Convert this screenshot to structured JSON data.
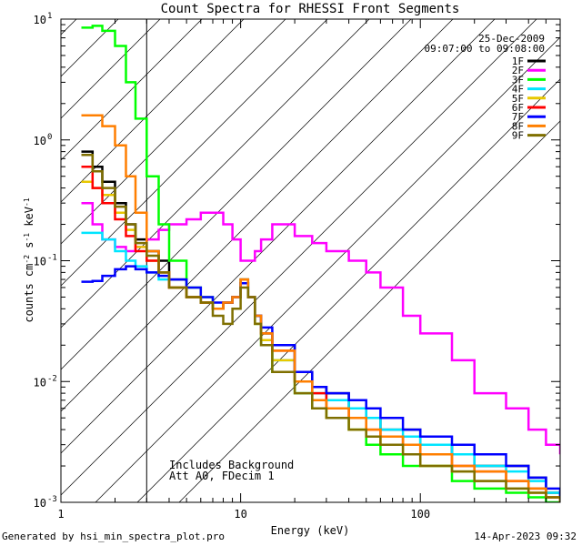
{
  "chart_data": {
    "type": "line",
    "title": "Count Spectra for RHESSI Front Segments",
    "xlabel": "Energy (keV)",
    "ylabel": "counts cm^-2 s^-1 keV^-1",
    "xscale": "log",
    "yscale": "log",
    "xlim": [
      1,
      600
    ],
    "ylim": [
      0.001,
      10
    ],
    "x_ticks": [
      1,
      10,
      100
    ],
    "x_tick_labels": [
      "1",
      "10",
      "100"
    ],
    "y_ticks": [
      0.001,
      0.01,
      0.1,
      1,
      10
    ],
    "y_tick_labels": {
      "0.001": {
        "base": "10",
        "exp": "-3"
      },
      "0.01": {
        "base": "10",
        "exp": "-2"
      },
      "0.1": {
        "base": "10",
        "exp": "-1"
      },
      "1": {
        "base": "10",
        "exp": "0"
      },
      "10": {
        "base": "10",
        "exp": "1"
      }
    },
    "shaded_region": {
      "x_from": 1,
      "x_to": 3,
      "style": "diagonal-hatch"
    },
    "legend_placement": "top-right",
    "date_label": "25-Dec-2009",
    "time_range_label": "09:07:00 to 09:08:00",
    "annotations": [
      "Includes Background",
      "Att A0, FDecim 1"
    ],
    "series": [
      {
        "name": "1F",
        "color": "#000000",
        "x": [
          1.3,
          1.5,
          1.7,
          2.0,
          2.3,
          2.6,
          3.0,
          3.5,
          4.0,
          5.0,
          6.0,
          7.0,
          8.0,
          9.0,
          10.0,
          11.0,
          12.0,
          13.0,
          15.0,
          20.0,
          25.0,
          30.0,
          40.0,
          50.0,
          60.0,
          80.0,
          100.0,
          150.0,
          200.0,
          300.0,
          400.0,
          500.0,
          600.0
        ],
        "y": [
          0.8,
          0.6,
          0.45,
          0.3,
          0.2,
          0.15,
          0.12,
          0.1,
          0.07,
          0.05,
          0.045,
          0.04,
          0.045,
          0.05,
          0.065,
          0.05,
          0.035,
          0.025,
          0.02,
          0.012,
          0.009,
          0.008,
          0.006,
          0.005,
          0.004,
          0.004,
          0.003,
          0.0025,
          0.002,
          0.002,
          0.0016,
          0.0012,
          0.001
        ]
      },
      {
        "name": "2F",
        "color": "#ff00ff",
        "x": [
          1.3,
          1.5,
          1.7,
          2.0,
          2.3,
          2.6,
          3.0,
          3.5,
          4.0,
          5.0,
          6.0,
          7.0,
          8.0,
          9.0,
          10.0,
          11.0,
          12.0,
          13.0,
          15.0,
          20.0,
          25.0,
          30.0,
          40.0,
          50.0,
          60.0,
          80.0,
          100.0,
          150.0,
          200.0,
          300.0,
          400.0,
          500.0,
          600.0
        ],
        "y": [
          0.3,
          0.2,
          0.15,
          0.13,
          0.12,
          0.13,
          0.15,
          0.18,
          0.2,
          0.22,
          0.25,
          0.25,
          0.2,
          0.15,
          0.1,
          0.1,
          0.12,
          0.15,
          0.2,
          0.16,
          0.14,
          0.12,
          0.1,
          0.08,
          0.06,
          0.035,
          0.025,
          0.015,
          0.008,
          0.006,
          0.004,
          0.003,
          0.0025
        ]
      },
      {
        "name": "3F",
        "color": "#00ff00",
        "x": [
          1.3,
          1.5,
          1.7,
          2.0,
          2.3,
          2.6,
          3.0,
          3.5,
          4.0,
          5.0,
          6.0,
          7.0,
          8.0,
          9.0,
          10.0,
          11.0,
          12.0,
          13.0,
          15.0,
          20.0,
          25.0,
          30.0,
          40.0,
          50.0,
          60.0,
          80.0,
          100.0,
          150.0,
          200.0,
          300.0,
          400.0,
          500.0,
          600.0
        ],
        "y": [
          8.5,
          8.8,
          8.0,
          6.0,
          3.0,
          1.5,
          0.5,
          0.2,
          0.1,
          0.06,
          0.05,
          0.04,
          0.045,
          0.05,
          0.07,
          0.05,
          0.03,
          0.02,
          0.012,
          0.008,
          0.006,
          0.005,
          0.004,
          0.003,
          0.0025,
          0.002,
          0.002,
          0.0015,
          0.0013,
          0.0012,
          0.0011,
          0.001,
          0.001
        ]
      },
      {
        "name": "4F",
        "color": "#00e5ff",
        "x": [
          1.3,
          1.5,
          1.7,
          2.0,
          2.3,
          2.6,
          3.0,
          3.5,
          4.0,
          5.0,
          6.0,
          7.0,
          8.0,
          9.0,
          10.0,
          11.0,
          12.0,
          13.0,
          15.0,
          20.0,
          25.0,
          30.0,
          40.0,
          50.0,
          60.0,
          80.0,
          100.0,
          150.0,
          200.0,
          300.0,
          400.0,
          500.0,
          600.0
        ],
        "y": [
          0.17,
          0.17,
          0.15,
          0.12,
          0.1,
          0.09,
          0.08,
          0.07,
          0.06,
          0.05,
          0.045,
          0.04,
          0.045,
          0.05,
          0.07,
          0.05,
          0.035,
          0.025,
          0.015,
          0.01,
          0.008,
          0.007,
          0.006,
          0.005,
          0.004,
          0.0035,
          0.003,
          0.0025,
          0.002,
          0.0018,
          0.0015,
          0.0012,
          0.001
        ]
      },
      {
        "name": "5F",
        "color": "#e8c800",
        "x": [
          1.3,
          1.5,
          1.7,
          2.0,
          2.3,
          2.6,
          3.0,
          3.5,
          4.0,
          5.0,
          6.0,
          7.0,
          8.0,
          9.0,
          10.0,
          11.0,
          12.0,
          13.0,
          15.0,
          20.0,
          25.0,
          30.0,
          40.0,
          50.0,
          60.0,
          80.0,
          100.0,
          150.0,
          200.0,
          300.0,
          400.0,
          500.0,
          600.0
        ],
        "y": [
          0.45,
          0.4,
          0.35,
          0.25,
          0.18,
          0.13,
          0.1,
          0.08,
          0.06,
          0.05,
          0.045,
          0.04,
          0.045,
          0.05,
          0.065,
          0.05,
          0.03,
          0.022,
          0.015,
          0.01,
          0.007,
          0.005,
          0.004,
          0.0035,
          0.003,
          0.0025,
          0.002,
          0.0018,
          0.0015,
          0.0013,
          0.0012,
          0.0011,
          0.001
        ]
      },
      {
        "name": "6F",
        "color": "#ff0000",
        "x": [
          1.3,
          1.5,
          1.7,
          2.0,
          2.3,
          2.6,
          3.0,
          3.5,
          4.0,
          5.0,
          6.0,
          7.0,
          8.0,
          9.0,
          10.0,
          11.0,
          12.0,
          13.0,
          15.0,
          20.0,
          25.0,
          30.0,
          40.0,
          50.0,
          60.0,
          80.0,
          100.0,
          150.0,
          200.0,
          300.0,
          400.0,
          500.0,
          600.0
        ],
        "y": [
          0.6,
          0.4,
          0.3,
          0.22,
          0.16,
          0.12,
          0.1,
          0.08,
          0.06,
          0.05,
          0.045,
          0.04,
          0.045,
          0.05,
          0.07,
          0.05,
          0.035,
          0.025,
          0.018,
          0.01,
          0.008,
          0.006,
          0.005,
          0.004,
          0.0035,
          0.003,
          0.0025,
          0.002,
          0.0018,
          0.0015,
          0.0013,
          0.0011,
          0.001
        ]
      },
      {
        "name": "7F",
        "color": "#0000ff",
        "x": [
          1.3,
          1.5,
          1.7,
          2.0,
          2.3,
          2.6,
          3.0,
          3.5,
          4.0,
          5.0,
          6.0,
          7.0,
          8.0,
          9.0,
          10.0,
          11.0,
          12.0,
          13.0,
          15.0,
          20.0,
          25.0,
          30.0,
          40.0,
          50.0,
          60.0,
          80.0,
          100.0,
          150.0,
          200.0,
          300.0,
          400.0,
          500.0,
          600.0
        ],
        "y": [
          0.067,
          0.068,
          0.075,
          0.085,
          0.09,
          0.085,
          0.08,
          0.075,
          0.07,
          0.06,
          0.05,
          0.045,
          0.045,
          0.05,
          0.065,
          0.05,
          0.035,
          0.028,
          0.02,
          0.012,
          0.009,
          0.008,
          0.007,
          0.006,
          0.005,
          0.004,
          0.0035,
          0.003,
          0.0025,
          0.002,
          0.0016,
          0.0013,
          0.0011
        ]
      },
      {
        "name": "8F",
        "color": "#ff7f00",
        "x": [
          1.3,
          1.5,
          1.7,
          2.0,
          2.3,
          2.6,
          3.0,
          3.5,
          4.0,
          5.0,
          6.0,
          7.0,
          8.0,
          9.0,
          10.0,
          11.0,
          12.0,
          13.0,
          15.0,
          20.0,
          25.0,
          30.0,
          40.0,
          50.0,
          60.0,
          80.0,
          100.0,
          150.0,
          200.0,
          300.0,
          400.0,
          500.0,
          600.0
        ],
        "y": [
          1.6,
          1.6,
          1.3,
          0.9,
          0.5,
          0.25,
          0.12,
          0.08,
          0.06,
          0.05,
          0.045,
          0.04,
          0.045,
          0.05,
          0.07,
          0.05,
          0.035,
          0.025,
          0.018,
          0.01,
          0.007,
          0.006,
          0.005,
          0.004,
          0.0035,
          0.003,
          0.0025,
          0.002,
          0.0018,
          0.0015,
          0.0013,
          0.0011,
          0.001
        ]
      },
      {
        "name": "9F",
        "color": "#7f6f00",
        "x": [
          1.3,
          1.5,
          1.7,
          2.0,
          2.3,
          2.6,
          3.0,
          3.5,
          4.0,
          5.0,
          6.0,
          7.0,
          8.0,
          9.0,
          10.0,
          11.0,
          12.0,
          13.0,
          15.0,
          20.0,
          25.0,
          30.0,
          40.0,
          50.0,
          60.0,
          80.0,
          100.0,
          150.0,
          200.0,
          300.0,
          400.0,
          500.0,
          600.0
        ],
        "y": [
          0.75,
          0.55,
          0.4,
          0.28,
          0.2,
          0.14,
          0.11,
          0.08,
          0.06,
          0.05,
          0.045,
          0.035,
          0.03,
          0.04,
          0.06,
          0.05,
          0.03,
          0.02,
          0.012,
          0.008,
          0.006,
          0.005,
          0.004,
          0.0035,
          0.003,
          0.0025,
          0.002,
          0.0018,
          0.0015,
          0.0013,
          0.0012,
          0.0011,
          0.001
        ]
      }
    ]
  },
  "footer": {
    "generated_by": "Generated by hsi_min_spectra_plot.pro",
    "timestamp": "14-Apr-2023 09:32"
  }
}
